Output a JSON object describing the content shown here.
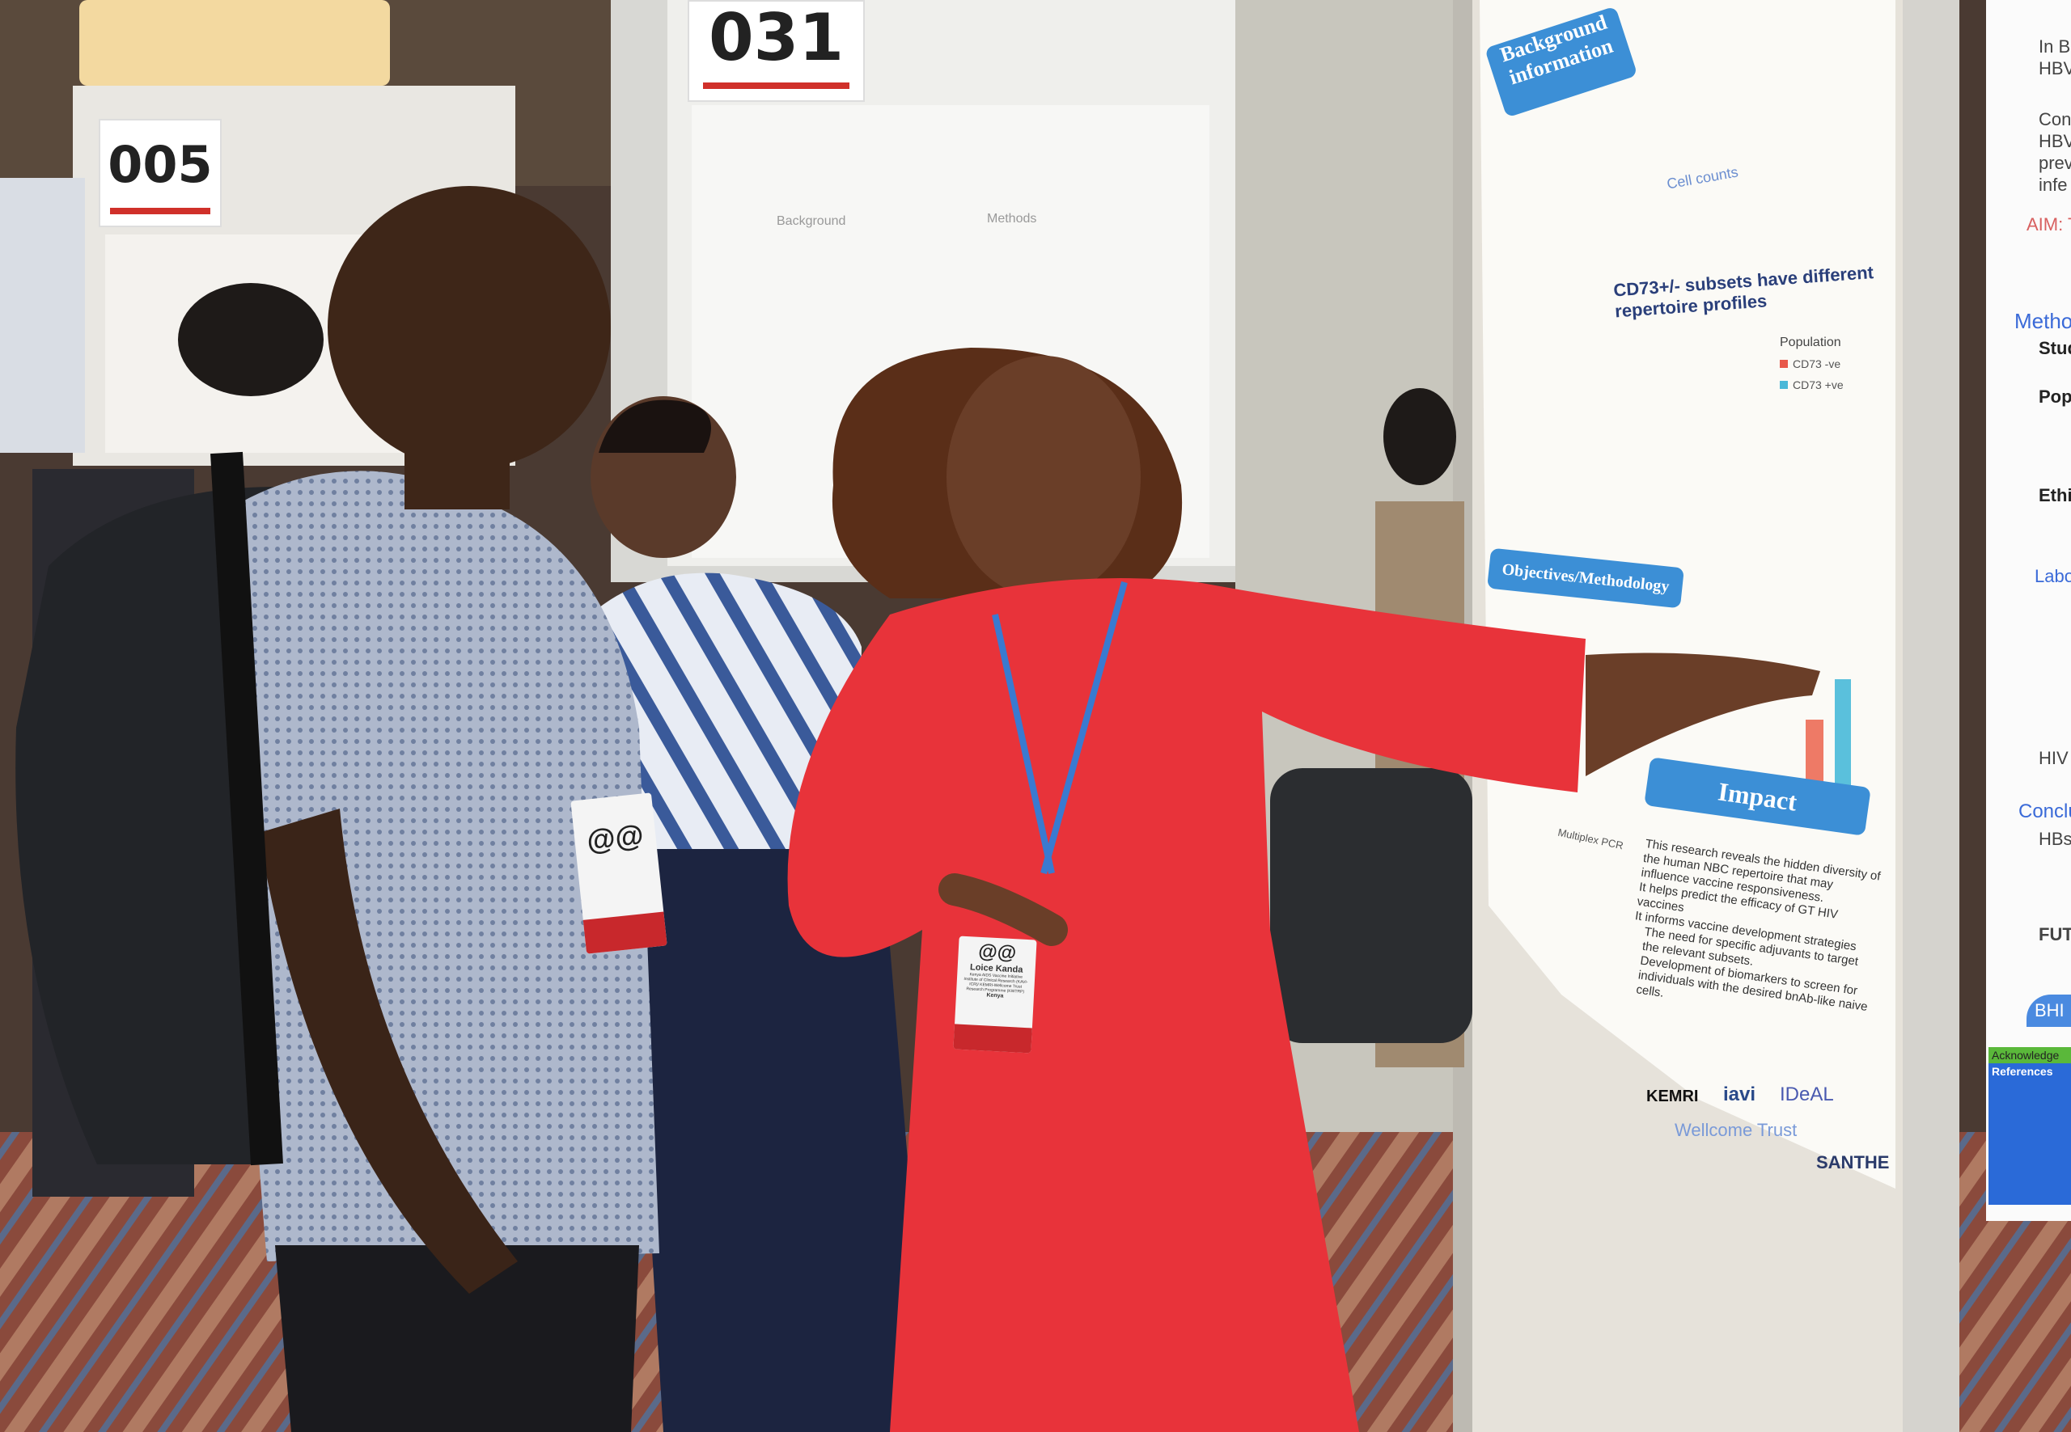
{
  "scene": {
    "colors": {
      "dress": "#e8333a",
      "poster_banner": "#3c8fd6",
      "poster_heading": "#2a3f7a",
      "badge_stripe": "#c8282c",
      "carpet": "#8a4a3c"
    }
  },
  "posters": {
    "left": {
      "number": "005"
    },
    "center": {
      "number": "031",
      "heading_left": "Background",
      "heading_right": "Methods"
    },
    "main": {
      "background_title": "Background information",
      "section_title": "CD73+/- subsets have different repertoire profiles",
      "cell_counts_label": "Cell counts",
      "legend_title": "Population",
      "legend_items": [
        "CD73 -ve",
        "CD73 +ve"
      ],
      "objectives_title": "Objectives/Methodology",
      "multiplex_label": "Multiplex PCR",
      "impact_title": "Impact",
      "impact_bullets": [
        "This research reveals the hidden diversity of the human NBC repertoire that may influence vaccine responsiveness.",
        "It helps predict the efficacy of GT HIV vaccines",
        "It informs vaccine development strategies"
      ],
      "impact_checks": [
        "The need for specific adjuvants to target the relevant subsets.",
        "Development of biomarkers to screen for individuals with the desired bnAb-like naive cells."
      ],
      "logos": [
        "KEMRI",
        "Wellcome Trust",
        "iavi",
        "IDeAL",
        "SANTHE"
      ]
    },
    "right": {
      "lines": [
        "In B",
        "HBV",
        "Cons",
        "HBV",
        "prev",
        "infe"
      ],
      "aim": "AIM: T",
      "sections": [
        "Metho",
        "Labo",
        "Conclu"
      ],
      "items": [
        "Stud",
        "Popu",
        "Ethi",
        "HIV",
        "HBsA",
        "FUTU"
      ],
      "logo": "BHI",
      "acknowledgements": "Acknowledge",
      "references": "References"
    }
  },
  "badges": {
    "presenter": {
      "name": "Loice Kanda",
      "affiliation": "Kenya AIDS Vaccine Initiative Institute of Clinical Research (KAVI-ICR)/ KEMRI-Wellcome Trust Research Programme (KWTRP)",
      "country": "Kenya"
    }
  }
}
